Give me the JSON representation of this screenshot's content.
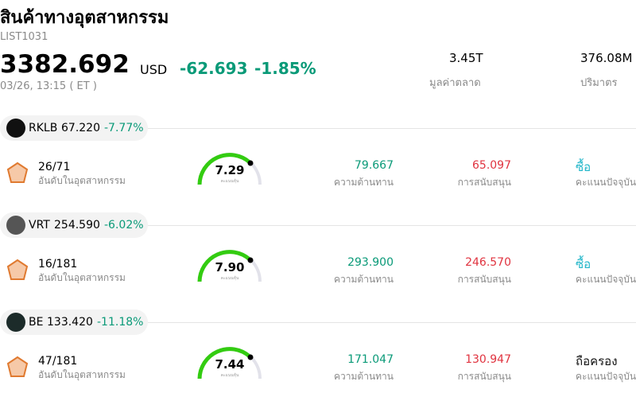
{
  "header": {
    "title": "สินค้าทางอุตสาหกรรม",
    "code": "LIST1031",
    "price": "3382.692",
    "currency": "USD",
    "change": "-62.693",
    "change_pct": "-1.85%",
    "time": "03/26, 13:15 ( ET )",
    "stats": [
      {
        "value": "3.45T",
        "label": "มูลค่าตลาด"
      },
      {
        "value": "376.08M",
        "label": "ปริมาตร"
      }
    ]
  },
  "items": [
    {
      "ticker": "RKLB",
      "price": "67.220",
      "change_pct": "-7.77%",
      "rank": "26/71",
      "rank_label": "อันดับในอุตสาหกรรม",
      "score": "7.29",
      "score_label": "คะแนนหุ้น",
      "resistance": "79.667",
      "resistance_label": "ความต้านทาน",
      "support": "65.097",
      "support_label": "การสนับสนุน",
      "rating": "ซื้อ",
      "rating_label": "คะแนนปัจจุบัน"
    },
    {
      "ticker": "VRT",
      "price": "254.590",
      "change_pct": "-6.02%",
      "rank": "16/181",
      "rank_label": "อันดับในอุตสาหกรรม",
      "score": "7.90",
      "score_label": "คะแนนหุ้น",
      "resistance": "293.900",
      "resistance_label": "ความต้านทาน",
      "support": "246.570",
      "support_label": "การสนับสนุน",
      "rating": "ซื้อ",
      "rating_label": "คะแนนปัจจุบัน"
    },
    {
      "ticker": "BE",
      "price": "133.420",
      "change_pct": "-11.18%",
      "rank": "47/181",
      "rank_label": "อันดับในอุตสาหกรรม",
      "score": "7.44",
      "score_label": "คะแนนหุ้น",
      "resistance": "171.047",
      "resistance_label": "ความต้านทาน",
      "support": "130.947",
      "support_label": "การสนับสนุน",
      "rating": "ถือครอง",
      "rating_label": "คะแนนปัจจุบัน"
    }
  ]
}
